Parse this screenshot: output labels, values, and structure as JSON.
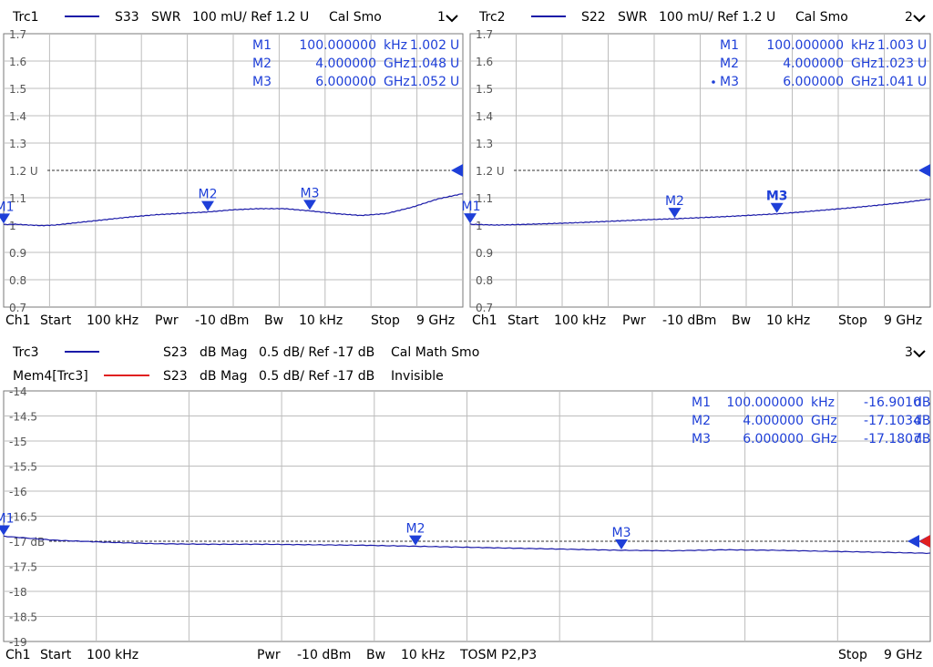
{
  "colors": {
    "trace": "#1a1aa8",
    "marker": "#1e3fd8",
    "memory": "#e02020",
    "grid": "#bdbdbd",
    "frame": "#7a7a7a"
  },
  "panels": [
    {
      "id": "trc1",
      "header": {
        "trace_name": "Trc1",
        "param": "S33",
        "format": "SWR",
        "scale": "100 mU/ Ref 1.2 U",
        "flags": "Cal Smo",
        "channel_tab": "1",
        "dropdown_icon": "chevron-down-icon"
      },
      "memory_header": null,
      "ref_label": "1.2 U",
      "marker_table": [
        {
          "label": "M1",
          "stim": "100.000000",
          "unit": "kHz",
          "value": "1.002",
          "vunit": "U",
          "active": false
        },
        {
          "label": "M2",
          "stim": "4.000000",
          "unit": "GHz",
          "value": "1.048",
          "vunit": "U",
          "active": false
        },
        {
          "label": "M3",
          "stim": "6.000000",
          "unit": "GHz",
          "value": "1.052",
          "vunit": "U",
          "active": false
        }
      ],
      "footer": {
        "channel": "Ch1",
        "start_label": "Start",
        "start_value": "100 kHz",
        "pwr_label": "Pwr",
        "pwr_value": "-10 dBm",
        "bw_label": "Bw",
        "bw_value": "10 kHz",
        "extra": "",
        "stop_label": "Stop",
        "stop_value": "9 GHz"
      }
    },
    {
      "id": "trc2",
      "header": {
        "trace_name": "Trc2",
        "param": "S22",
        "format": "SWR",
        "scale": "100 mU/ Ref 1.2 U",
        "flags": "Cal Smo",
        "channel_tab": "2",
        "dropdown_icon": "chevron-down-icon"
      },
      "memory_header": null,
      "ref_label": "1.2 U",
      "marker_table": [
        {
          "label": "M1",
          "stim": "100.000000",
          "unit": "kHz",
          "value": "1.003",
          "vunit": "U",
          "active": false
        },
        {
          "label": "M2",
          "stim": "4.000000",
          "unit": "GHz",
          "value": "1.023",
          "vunit": "U",
          "active": false
        },
        {
          "label": "M3",
          "stim": "6.000000",
          "unit": "GHz",
          "value": "1.041",
          "vunit": "U",
          "active": true
        }
      ],
      "footer": {
        "channel": "Ch1",
        "start_label": "Start",
        "start_value": "100 kHz",
        "pwr_label": "Pwr",
        "pwr_value": "-10 dBm",
        "bw_label": "Bw",
        "bw_value": "10 kHz",
        "extra": "",
        "stop_label": "Stop",
        "stop_value": "9 GHz"
      }
    },
    {
      "id": "trc3",
      "header": {
        "trace_name": "Trc3",
        "param": "S23",
        "format": "dB Mag",
        "scale": "0.5 dB/ Ref -17 dB",
        "flags": "Cal Math Smo",
        "channel_tab": "3",
        "dropdown_icon": "chevron-down-icon"
      },
      "memory_header": {
        "trace_name": "Mem4[Trc3]",
        "param": "S23",
        "format": "dB Mag",
        "scale": "0.5 dB/ Ref -17 dB",
        "flags": "Invisible"
      },
      "ref_label": "-17 dB",
      "marker_table": [
        {
          "label": "M1",
          "stim": "100.000000",
          "unit": "kHz",
          "value": "-16.9010",
          "vunit": "dB",
          "active": false
        },
        {
          "label": "M2",
          "stim": "4.000000",
          "unit": "GHz",
          "value": "-17.1034",
          "vunit": "dB",
          "active": false
        },
        {
          "label": "M3",
          "stim": "6.000000",
          "unit": "GHz",
          "value": "-17.1807",
          "vunit": "dB",
          "active": false
        }
      ],
      "footer": {
        "channel": "Ch1",
        "start_label": "Start",
        "start_value": "100 kHz",
        "pwr_label": "Pwr",
        "pwr_value": "-10 dBm",
        "bw_label": "Bw",
        "bw_value": "10 kHz",
        "extra": "TOSM P2,P3",
        "stop_label": "Stop",
        "stop_value": "9 GHz"
      }
    }
  ],
  "chart_data": [
    {
      "type": "line",
      "id": "trc1",
      "title": "",
      "xlabel": "",
      "ylabel": "",
      "xlim": [
        0.0001,
        9
      ],
      "x_unit": "GHz",
      "ylim": [
        0.7,
        1.7
      ],
      "y_ticks": [
        "0.7",
        "0.8",
        "0.9",
        "1",
        "1.1",
        "1.2 U",
        "1.3",
        "1.4",
        "1.5",
        "1.6",
        "1.7"
      ],
      "ref_value": 1.2,
      "grid": true,
      "series": [
        {
          "x": [
            0.0001,
            0.25,
            0.5,
            0.75,
            1,
            1.5,
            2,
            2.5,
            3,
            3.5,
            4,
            4.5,
            5,
            5.5,
            6,
            6.5,
            7,
            7.5,
            8,
            8.5,
            9
          ],
          "y": [
            1.002,
            1.003,
            1.0,
            0.998,
            1.0,
            1.01,
            1.02,
            1.03,
            1.038,
            1.043,
            1.048,
            1.056,
            1.06,
            1.06,
            1.052,
            1.042,
            1.035,
            1.042,
            1.065,
            1.095,
            1.115
          ]
        }
      ],
      "markers": [
        {
          "label": "M1",
          "x": 0.0001,
          "y": 1.002
        },
        {
          "label": "M2",
          "x": 4.0,
          "y": 1.048
        },
        {
          "label": "M3",
          "x": 6.0,
          "y": 1.052
        }
      ]
    },
    {
      "type": "line",
      "id": "trc2",
      "title": "",
      "xlabel": "",
      "ylabel": "",
      "xlim": [
        0.0001,
        9
      ],
      "x_unit": "GHz",
      "ylim": [
        0.7,
        1.7
      ],
      "y_ticks": [
        "0.7",
        "0.8",
        "0.9",
        "1",
        "1.1",
        "1.2 U",
        "1.3",
        "1.4",
        "1.5",
        "1.6",
        "1.7"
      ],
      "ref_value": 1.2,
      "grid": true,
      "series": [
        {
          "x": [
            0.0001,
            0.5,
            1,
            1.5,
            2,
            2.5,
            3,
            3.5,
            4,
            4.5,
            5,
            5.5,
            6,
            6.5,
            7,
            7.5,
            8,
            8.5,
            9
          ],
          "y": [
            1.003,
            1.0,
            1.002,
            1.005,
            1.008,
            1.012,
            1.016,
            1.02,
            1.023,
            1.027,
            1.031,
            1.036,
            1.041,
            1.048,
            1.056,
            1.064,
            1.073,
            1.083,
            1.095
          ]
        }
      ],
      "markers": [
        {
          "label": "M1",
          "x": 0.0001,
          "y": 1.003
        },
        {
          "label": "M2",
          "x": 4.0,
          "y": 1.023
        },
        {
          "label": "M3",
          "x": 6.0,
          "y": 1.041
        }
      ]
    },
    {
      "type": "line",
      "id": "trc3",
      "title": "",
      "xlabel": "",
      "ylabel": "",
      "xlim": [
        0.0001,
        9
      ],
      "x_unit": "GHz",
      "ylim": [
        -19,
        -14
      ],
      "y_ticks": [
        "-19",
        "-18.5",
        "-18",
        "-17.5",
        "-17 dB",
        "-16.5",
        "-16",
        "-15.5",
        "-15",
        "-14.5",
        "-14"
      ],
      "ref_value": -17,
      "grid": true,
      "series": [
        {
          "x": [
            0.0001,
            0.25,
            0.5,
            0.75,
            1,
            1.5,
            2,
            2.5,
            3,
            3.5,
            4,
            4.5,
            5,
            5.5,
            6,
            6.5,
            7,
            7.5,
            8,
            8.5,
            9
          ],
          "y": [
            -16.9,
            -16.94,
            -16.98,
            -17.0,
            -17.02,
            -17.05,
            -17.06,
            -17.06,
            -17.07,
            -17.08,
            -17.1,
            -17.12,
            -17.14,
            -17.16,
            -17.18,
            -17.19,
            -17.17,
            -17.18,
            -17.2,
            -17.22,
            -17.24
          ]
        }
      ],
      "markers": [
        {
          "label": "M1",
          "x": 0.0001,
          "y": -16.901
        },
        {
          "label": "M2",
          "x": 4.0,
          "y": -17.1034
        },
        {
          "label": "M3",
          "x": 6.0,
          "y": -17.1807
        }
      ]
    }
  ]
}
